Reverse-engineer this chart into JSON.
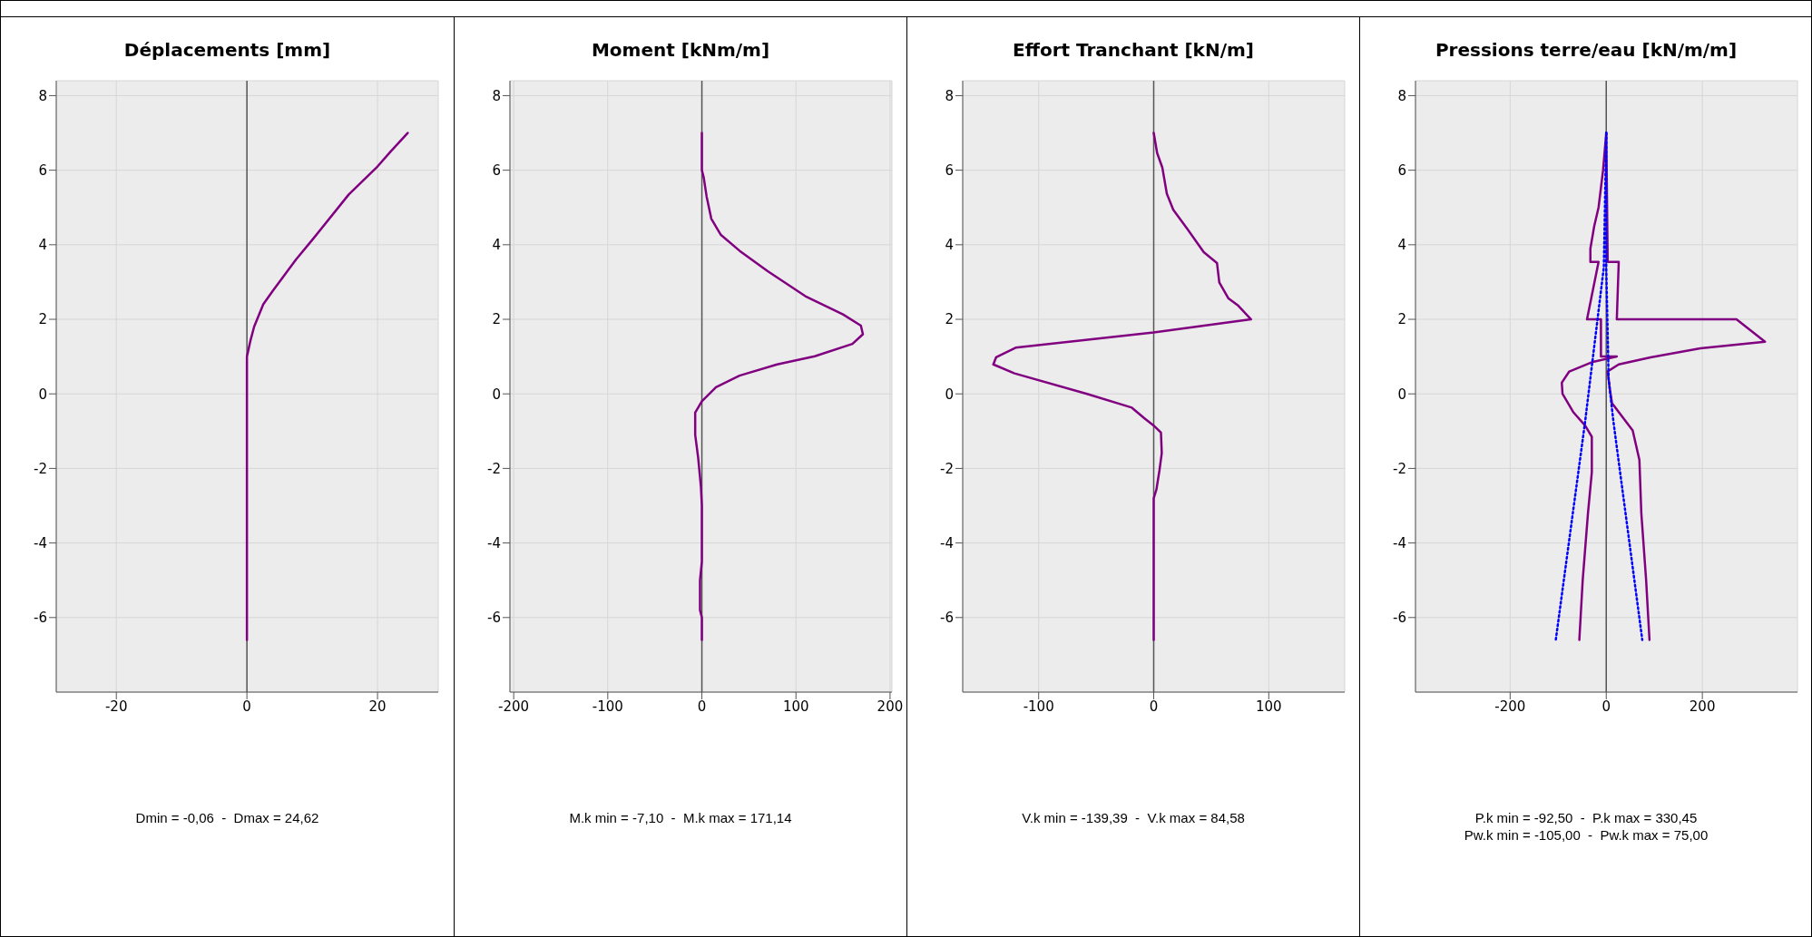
{
  "chart_data": [
    {
      "type": "line",
      "title": "Déplacements [mm]",
      "xlim": [
        -29.2,
        29.3
      ],
      "xticks": [
        -20,
        0,
        20
      ],
      "ylim": [
        -8,
        8.4
      ],
      "yticks": [
        -6,
        -4,
        -2,
        0,
        2,
        4,
        6,
        8
      ],
      "grid": true,
      "marker": "none",
      "ref_lines": [
        {
          "axis": "x",
          "value": 0,
          "color": "#555555"
        }
      ],
      "annotations": [
        "Dmin = -0,06  -  Dmax = 24,62"
      ],
      "series": [
        {
          "color": "#800080",
          "line_style": "solid",
          "x": [
            0,
            0,
            0.5,
            1.1,
            2.5,
            3.9,
            7.5,
            10.1,
            15.6,
            20,
            22,
            24.62
          ],
          "values": [
            -6.6,
            1.0,
            1.4,
            1.8,
            2.4,
            2.75,
            3.6,
            4.15,
            5.35,
            6.1,
            6.5,
            7.0
          ]
        }
      ]
    },
    {
      "type": "line",
      "title": "Moment [kNm/m]",
      "xlim": [
        -204,
        202
      ],
      "xticks": [
        -200,
        -100,
        0,
        100,
        200
      ],
      "ylim": [
        -8,
        8.4
      ],
      "yticks": [
        -6,
        -4,
        -2,
        0,
        2,
        4,
        6,
        8
      ],
      "grid": true,
      "marker": "none",
      "ref_lines": [
        {
          "axis": "x",
          "value": 0,
          "color": "#555555"
        }
      ],
      "annotations": [
        "M.k min = -7,10  -  M.k max = 171,14"
      ],
      "series": [
        {
          "color": "#800080",
          "line_style": "solid",
          "x": [
            0,
            0,
            2,
            5,
            10,
            20,
            40,
            70,
            110,
            150,
            169,
            171.14,
            160,
            120,
            80,
            40,
            15,
            0,
            -7.1,
            -7.1,
            -4,
            -1,
            0,
            0,
            -2,
            -2,
            0,
            0
          ],
          "values": [
            7.0,
            6.0,
            5.8,
            5.3,
            4.7,
            4.27,
            3.84,
            3.29,
            2.62,
            2.13,
            1.83,
            1.6,
            1.34,
            1.01,
            0.79,
            0.49,
            0.18,
            -0.2,
            -0.5,
            -1.1,
            -1.7,
            -2.5,
            -3.0,
            -4.5,
            -5.0,
            -5.8,
            -6.0,
            -6.6
          ]
        }
      ]
    },
    {
      "type": "line",
      "title": "Effort Tranchant [kN/m]",
      "xlim": [
        -166,
        166
      ],
      "xticks": [
        -100,
        0,
        100
      ],
      "ylim": [
        -8,
        8.4
      ],
      "yticks": [
        -6,
        -4,
        -2,
        0,
        2,
        4,
        6,
        8
      ],
      "grid": true,
      "marker": "none",
      "ref_lines": [
        {
          "axis": "x",
          "value": 0,
          "color": "#555555"
        }
      ],
      "annotations": [
        "V.k min = -139,39  -  V.k max = 84,58"
      ],
      "series": [
        {
          "color": "#800080",
          "line_style": "solid",
          "x": [
            0,
            3,
            7.5,
            11.4,
            17,
            30,
            43.5,
            55,
            57,
            65,
            73,
            84.58,
            0,
            -120,
            -137,
            -139.39,
            -121,
            -58,
            -19,
            -7.5,
            0,
            6.3,
            7,
            5,
            2.4,
            0,
            0
          ],
          "values": [
            7.0,
            6.46,
            6.07,
            5.37,
            4.94,
            4.39,
            3.8,
            3.51,
            2.99,
            2.56,
            2.38,
            2.0,
            1.65,
            1.24,
            0.98,
            0.79,
            0.55,
            0.0,
            -0.37,
            -0.67,
            -0.85,
            -1.04,
            -1.59,
            -2.05,
            -2.56,
            -2.8,
            -6.6
          ]
        }
      ]
    },
    {
      "type": "line",
      "title": "Pressions terre/eau [kN/m/m]",
      "xlim": [
        -397,
        398
      ],
      "xticks": [
        -200,
        0,
        200
      ],
      "ylim": [
        -8,
        8.4
      ],
      "yticks": [
        -6,
        -4,
        -2,
        0,
        2,
        4,
        6,
        8
      ],
      "grid": true,
      "marker": "none",
      "ref_lines": [
        {
          "axis": "x",
          "value": 0,
          "color": "#555555"
        }
      ],
      "annotations": [
        "P.k min = -92,50  -  P.k max = 330,45",
        "Pw.k min = -105,00  -  Pw.k max = 75,00"
      ],
      "series": [
        {
          "color": "#800080",
          "line_style": "solid",
          "x": [
            0,
            -6.6,
            -16,
            -25,
            -33,
            -33,
            -16,
            -40,
            -11,
            -11,
            22,
            -30,
            -77,
            -92.5,
            -91,
            -68,
            -44,
            -30,
            -30,
            -38,
            -49,
            -56
          ],
          "values": [
            7.0,
            6.0,
            5.0,
            4.5,
            3.9,
            3.54,
            3.54,
            2.0,
            2.0,
            1.0,
            1.0,
            0.85,
            0.6,
            0.3,
            0.0,
            -0.5,
            -0.85,
            -1.15,
            -2.1,
            -3.2,
            -5.0,
            -6.6
          ]
        },
        {
          "color": "#800080",
          "line_style": "solid",
          "x": [
            0,
            3,
            26,
            22,
            271,
            330.45,
            196,
            92,
            26,
            3,
            7.5,
            12,
            55,
            69,
            73,
            83,
            90
          ],
          "values": [
            7.0,
            3.54,
            3.54,
            2.0,
            2.0,
            1.4,
            1.22,
            0.98,
            0.79,
            0.6,
            0.12,
            -0.25,
            -0.98,
            -1.77,
            -3.2,
            -5.0,
            -6.6
          ]
        },
        {
          "color": "#0000ff",
          "line_style": "dotted",
          "x": [
            0,
            -5,
            -44,
            -105
          ],
          "values": [
            7.0,
            3.4,
            -0.75,
            -6.6
          ]
        },
        {
          "color": "#0000ff",
          "line_style": "dotted",
          "x": [
            0,
            0,
            5,
            15,
            75
          ],
          "values": [
            7.0,
            3.4,
            0.4,
            -0.75,
            -6.6
          ]
        }
      ]
    }
  ]
}
